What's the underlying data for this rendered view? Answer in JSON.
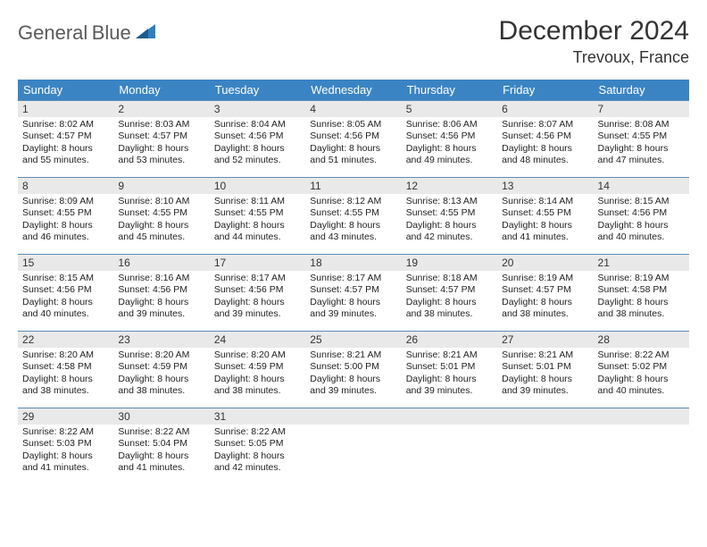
{
  "brand": {
    "word1": "General",
    "word2": "Blue"
  },
  "title": "December 2024",
  "location": "Trevoux, France",
  "colors": {
    "header_bg": "#3b84c4",
    "header_text": "#ffffff",
    "daynum_bg": "#e9e9e9",
    "row_border": "#5b8db8",
    "logo_gray": "#5a5a5a",
    "logo_blue": "#2f7fc0"
  },
  "weekdays": [
    "Sunday",
    "Monday",
    "Tuesday",
    "Wednesday",
    "Thursday",
    "Friday",
    "Saturday"
  ],
  "weeks": [
    [
      {
        "n": "1",
        "sr": "Sunrise: 8:02 AM",
        "ss": "Sunset: 4:57 PM",
        "d1": "Daylight: 8 hours",
        "d2": "and 55 minutes."
      },
      {
        "n": "2",
        "sr": "Sunrise: 8:03 AM",
        "ss": "Sunset: 4:57 PM",
        "d1": "Daylight: 8 hours",
        "d2": "and 53 minutes."
      },
      {
        "n": "3",
        "sr": "Sunrise: 8:04 AM",
        "ss": "Sunset: 4:56 PM",
        "d1": "Daylight: 8 hours",
        "d2": "and 52 minutes."
      },
      {
        "n": "4",
        "sr": "Sunrise: 8:05 AM",
        "ss": "Sunset: 4:56 PM",
        "d1": "Daylight: 8 hours",
        "d2": "and 51 minutes."
      },
      {
        "n": "5",
        "sr": "Sunrise: 8:06 AM",
        "ss": "Sunset: 4:56 PM",
        "d1": "Daylight: 8 hours",
        "d2": "and 49 minutes."
      },
      {
        "n": "6",
        "sr": "Sunrise: 8:07 AM",
        "ss": "Sunset: 4:56 PM",
        "d1": "Daylight: 8 hours",
        "d2": "and 48 minutes."
      },
      {
        "n": "7",
        "sr": "Sunrise: 8:08 AM",
        "ss": "Sunset: 4:55 PM",
        "d1": "Daylight: 8 hours",
        "d2": "and 47 minutes."
      }
    ],
    [
      {
        "n": "8",
        "sr": "Sunrise: 8:09 AM",
        "ss": "Sunset: 4:55 PM",
        "d1": "Daylight: 8 hours",
        "d2": "and 46 minutes."
      },
      {
        "n": "9",
        "sr": "Sunrise: 8:10 AM",
        "ss": "Sunset: 4:55 PM",
        "d1": "Daylight: 8 hours",
        "d2": "and 45 minutes."
      },
      {
        "n": "10",
        "sr": "Sunrise: 8:11 AM",
        "ss": "Sunset: 4:55 PM",
        "d1": "Daylight: 8 hours",
        "d2": "and 44 minutes."
      },
      {
        "n": "11",
        "sr": "Sunrise: 8:12 AM",
        "ss": "Sunset: 4:55 PM",
        "d1": "Daylight: 8 hours",
        "d2": "and 43 minutes."
      },
      {
        "n": "12",
        "sr": "Sunrise: 8:13 AM",
        "ss": "Sunset: 4:55 PM",
        "d1": "Daylight: 8 hours",
        "d2": "and 42 minutes."
      },
      {
        "n": "13",
        "sr": "Sunrise: 8:14 AM",
        "ss": "Sunset: 4:55 PM",
        "d1": "Daylight: 8 hours",
        "d2": "and 41 minutes."
      },
      {
        "n": "14",
        "sr": "Sunrise: 8:15 AM",
        "ss": "Sunset: 4:56 PM",
        "d1": "Daylight: 8 hours",
        "d2": "and 40 minutes."
      }
    ],
    [
      {
        "n": "15",
        "sr": "Sunrise: 8:15 AM",
        "ss": "Sunset: 4:56 PM",
        "d1": "Daylight: 8 hours",
        "d2": "and 40 minutes."
      },
      {
        "n": "16",
        "sr": "Sunrise: 8:16 AM",
        "ss": "Sunset: 4:56 PM",
        "d1": "Daylight: 8 hours",
        "d2": "and 39 minutes."
      },
      {
        "n": "17",
        "sr": "Sunrise: 8:17 AM",
        "ss": "Sunset: 4:56 PM",
        "d1": "Daylight: 8 hours",
        "d2": "and 39 minutes."
      },
      {
        "n": "18",
        "sr": "Sunrise: 8:17 AM",
        "ss": "Sunset: 4:57 PM",
        "d1": "Daylight: 8 hours",
        "d2": "and 39 minutes."
      },
      {
        "n": "19",
        "sr": "Sunrise: 8:18 AM",
        "ss": "Sunset: 4:57 PM",
        "d1": "Daylight: 8 hours",
        "d2": "and 38 minutes."
      },
      {
        "n": "20",
        "sr": "Sunrise: 8:19 AM",
        "ss": "Sunset: 4:57 PM",
        "d1": "Daylight: 8 hours",
        "d2": "and 38 minutes."
      },
      {
        "n": "21",
        "sr": "Sunrise: 8:19 AM",
        "ss": "Sunset: 4:58 PM",
        "d1": "Daylight: 8 hours",
        "d2": "and 38 minutes."
      }
    ],
    [
      {
        "n": "22",
        "sr": "Sunrise: 8:20 AM",
        "ss": "Sunset: 4:58 PM",
        "d1": "Daylight: 8 hours",
        "d2": "and 38 minutes."
      },
      {
        "n": "23",
        "sr": "Sunrise: 8:20 AM",
        "ss": "Sunset: 4:59 PM",
        "d1": "Daylight: 8 hours",
        "d2": "and 38 minutes."
      },
      {
        "n": "24",
        "sr": "Sunrise: 8:20 AM",
        "ss": "Sunset: 4:59 PM",
        "d1": "Daylight: 8 hours",
        "d2": "and 38 minutes."
      },
      {
        "n": "25",
        "sr": "Sunrise: 8:21 AM",
        "ss": "Sunset: 5:00 PM",
        "d1": "Daylight: 8 hours",
        "d2": "and 39 minutes."
      },
      {
        "n": "26",
        "sr": "Sunrise: 8:21 AM",
        "ss": "Sunset: 5:01 PM",
        "d1": "Daylight: 8 hours",
        "d2": "and 39 minutes."
      },
      {
        "n": "27",
        "sr": "Sunrise: 8:21 AM",
        "ss": "Sunset: 5:01 PM",
        "d1": "Daylight: 8 hours",
        "d2": "and 39 minutes."
      },
      {
        "n": "28",
        "sr": "Sunrise: 8:22 AM",
        "ss": "Sunset: 5:02 PM",
        "d1": "Daylight: 8 hours",
        "d2": "and 40 minutes."
      }
    ],
    [
      {
        "n": "29",
        "sr": "Sunrise: 8:22 AM",
        "ss": "Sunset: 5:03 PM",
        "d1": "Daylight: 8 hours",
        "d2": "and 41 minutes."
      },
      {
        "n": "30",
        "sr": "Sunrise: 8:22 AM",
        "ss": "Sunset: 5:04 PM",
        "d1": "Daylight: 8 hours",
        "d2": "and 41 minutes."
      },
      {
        "n": "31",
        "sr": "Sunrise: 8:22 AM",
        "ss": "Sunset: 5:05 PM",
        "d1": "Daylight: 8 hours",
        "d2": "and 42 minutes."
      },
      null,
      null,
      null,
      null
    ]
  ]
}
